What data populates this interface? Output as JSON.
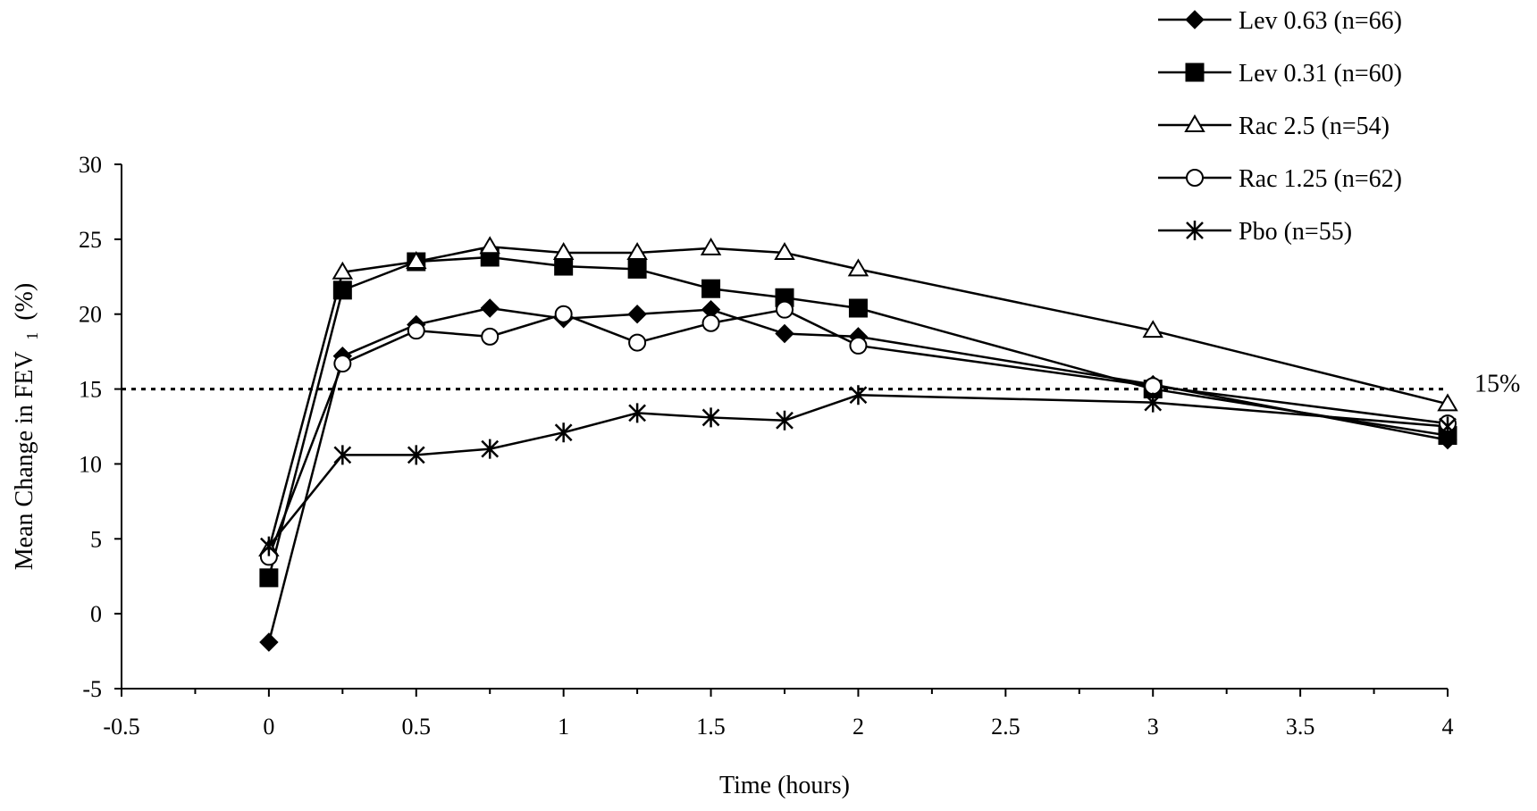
{
  "chart_data": {
    "type": "line",
    "title": "",
    "xlabel": "Time (hours)",
    "ylabel": {
      "prefix": "Mean Change in FEV",
      "subscript": "1",
      "suffix": "(%)"
    },
    "xlim": [
      -0.5,
      4
    ],
    "ylim": [
      -5,
      30
    ],
    "x_ticks": [
      -0.5,
      0,
      0.5,
      1,
      1.5,
      2,
      2.5,
      3,
      3.5,
      4
    ],
    "x_tick_labels": [
      "-0.5",
      "0",
      "0.5",
      "1",
      "1.5",
      "2",
      "2.5",
      "3",
      "3.5",
      "4"
    ],
    "y_ticks": [
      -5,
      0,
      5,
      10,
      15,
      20,
      25,
      30
    ],
    "y_tick_labels": [
      "-5",
      "0",
      "5",
      "10",
      "15",
      "20",
      "25",
      "30"
    ],
    "grid": false,
    "legend_position": "top-right",
    "reference_line": {
      "y": 15,
      "label": "15%",
      "style": "dashed"
    },
    "x": [
      0,
      0.25,
      0.5,
      0.75,
      1,
      1.25,
      1.5,
      1.75,
      2,
      3,
      4
    ],
    "series": [
      {
        "name": "Lev 0.63 (n=66)",
        "marker": "diamond",
        "values": [
          -1.9,
          17.2,
          19.3,
          20.4,
          19.7,
          20.0,
          20.3,
          18.7,
          18.5,
          15.3,
          11.6
        ]
      },
      {
        "name": "Lev 0.31 (n=60)",
        "marker": "square",
        "values": [
          2.4,
          21.6,
          23.5,
          23.8,
          23.2,
          23.0,
          21.7,
          21.1,
          20.4,
          15.0,
          11.9
        ]
      },
      {
        "name": "Rac 2.5 (n=54)",
        "marker": "triangle-open",
        "values": [
          4.3,
          22.8,
          23.5,
          24.5,
          24.1,
          24.1,
          24.4,
          24.1,
          23.0,
          18.9,
          14.0
        ]
      },
      {
        "name": "Rac 1.25 (n=62)",
        "marker": "circle-open",
        "values": [
          3.8,
          16.7,
          18.9,
          18.5,
          20.0,
          18.1,
          19.4,
          20.3,
          17.9,
          15.2,
          12.7
        ]
      },
      {
        "name": "Pbo (n=55)",
        "marker": "star",
        "values": [
          4.5,
          10.6,
          10.6,
          11.0,
          12.1,
          13.4,
          13.1,
          12.9,
          14.6,
          14.1,
          12.5
        ]
      }
    ]
  }
}
